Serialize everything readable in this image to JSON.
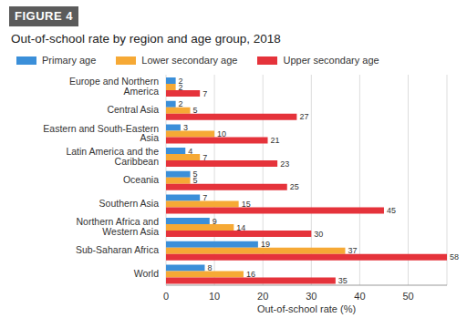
{
  "chart_data": {
    "type": "bar",
    "orientation": "horizontal",
    "figure_label": "FIGURE 4",
    "title": "Out-of-school rate by region and age group, 2018",
    "x_label": "Out-of-school rate (%)",
    "categories": [
      "Europe and Northern America",
      "Central Asia",
      "Eastern and South-Eastern Asia",
      "Latin America and the Caribbean",
      "Oceania",
      "Southern Asia",
      "Northern Africa and Western Asia",
      "Sub-Saharan Africa",
      "World"
    ],
    "series": [
      {
        "name": "Primary age",
        "color": "#3b8fd9",
        "values": [
          2,
          2,
          3,
          4,
          5,
          7,
          9,
          19,
          8
        ]
      },
      {
        "name": "Lower secondary age",
        "color": "#f6a935",
        "values": [
          2,
          5,
          10,
          7,
          5,
          15,
          14,
          37,
          16
        ]
      },
      {
        "name": "Upper secondary age",
        "color": "#e5333b",
        "values": [
          7,
          27,
          21,
          23,
          25,
          45,
          30,
          58,
          35
        ]
      }
    ],
    "xlim": [
      0,
      58
    ],
    "xticks": [
      0,
      10,
      20,
      30,
      40,
      50
    ],
    "grid": true,
    "legend": "top left",
    "data_labels": true
  }
}
